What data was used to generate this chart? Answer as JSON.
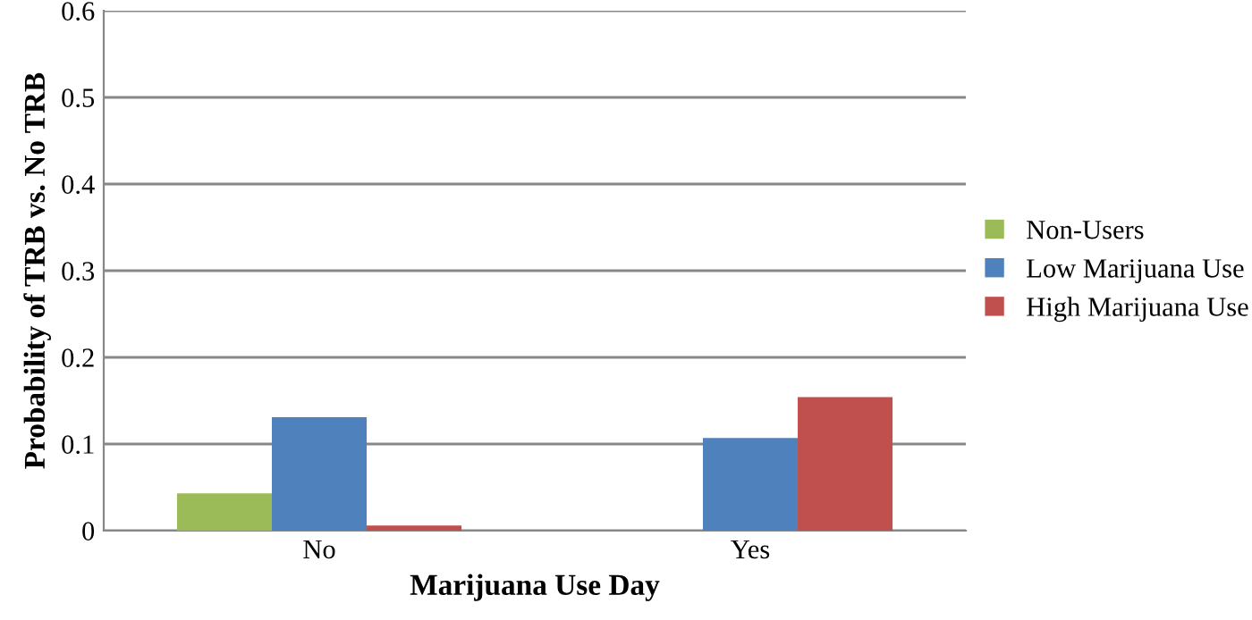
{
  "chart_data": {
    "type": "bar",
    "xlabel": "Marijuana Use Day",
    "ylabel": "Probability of TRB vs. No TRB",
    "categories": [
      "No",
      "Yes"
    ],
    "series": [
      {
        "name": "Non-Users",
        "color": "#9bbb59",
        "values": [
          0.043,
          null
        ]
      },
      {
        "name": "Low Marijuana Use",
        "color": "#4f81bd",
        "values": [
          0.131,
          0.107
        ]
      },
      {
        "name": "High Marijuana Use",
        "color": "#c0504d",
        "values": [
          0.006,
          0.154
        ]
      }
    ],
    "ylim": [
      0,
      0.6
    ],
    "yticks": [
      0,
      0.1,
      0.2,
      0.3,
      0.4,
      0.5,
      0.6
    ],
    "grid": "y",
    "legend": "right"
  }
}
